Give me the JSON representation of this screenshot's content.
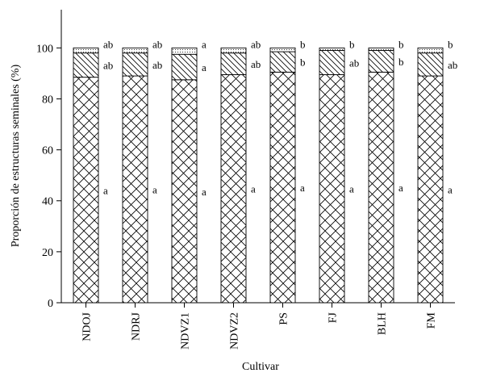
{
  "chart_data": {
    "type": "bar",
    "stacked": true,
    "xlabel": "Cultivar",
    "ylabel": "Proporción de estructuras seminales (%)",
    "ylim": [
      0,
      115
    ],
    "yticks": [
      "0",
      "20",
      "40",
      "60",
      "80",
      "100"
    ],
    "grid": false,
    "categories": [
      "NDOJ",
      "NDRJ",
      "NDVZ1",
      "NDVZ2",
      "PS",
      "FJ",
      "BLH",
      "FM"
    ],
    "series": [
      {
        "pattern": "crosshatch",
        "values": [
          88.5,
          89,
          87.5,
          89.5,
          90.5,
          89.5,
          90.5,
          89
        ],
        "letters": [
          "a",
          "a",
          "a",
          "a",
          "a",
          "a",
          "a",
          "a"
        ]
      },
      {
        "pattern": "diagonal",
        "values": [
          9.5,
          9,
          10,
          8.5,
          8,
          9.5,
          8.5,
          9
        ],
        "letters": [
          "ab",
          "ab",
          "a",
          "ab",
          "b",
          "ab",
          "b",
          "ab"
        ]
      },
      {
        "pattern": "dotted",
        "values": [
          2,
          2,
          2.5,
          2,
          1.5,
          1,
          1,
          2
        ],
        "letters": [
          "ab",
          "ab",
          "a",
          "ab",
          "b",
          "b",
          "b",
          "b"
        ]
      }
    ]
  }
}
